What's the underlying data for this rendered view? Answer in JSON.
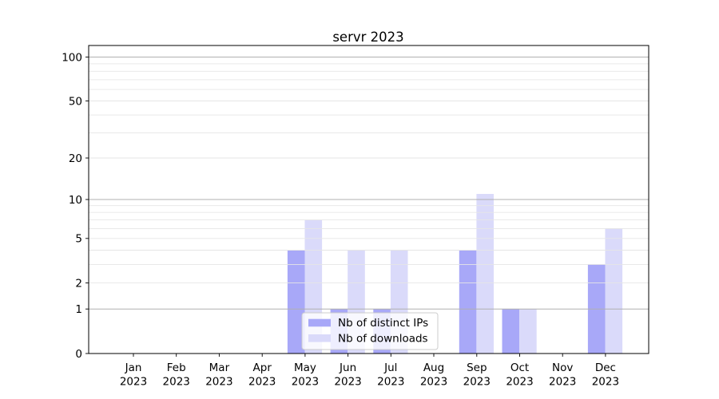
{
  "title": "servr 2023",
  "chart_data": {
    "type": "bar",
    "title": "servr 2023",
    "xlabel": "",
    "ylabel": "",
    "categories": [
      "Jan 2023",
      "Feb 2023",
      "Mar 2023",
      "Apr 2023",
      "May 2023",
      "Jun 2023",
      "Jul 2023",
      "Aug 2023",
      "Sep 2023",
      "Oct 2023",
      "Nov 2023",
      "Dec 2023"
    ],
    "series": [
      {
        "name": "Nb of distinct IPs",
        "color": "#a8a8f8",
        "values": [
          0,
          0,
          0,
          0,
          4,
          1,
          1,
          0,
          4,
          1,
          0,
          3
        ]
      },
      {
        "name": "Nb of downloads",
        "color": "#dadafa",
        "values": [
          0,
          0,
          0,
          0,
          7,
          4,
          4,
          0,
          11,
          1,
          0,
          6
        ]
      }
    ],
    "y_scale": "log1p",
    "ylim": [
      0,
      120
    ],
    "yticks": [
      0,
      1,
      2,
      5,
      10,
      20,
      50,
      100
    ],
    "grid": "horizontal; major gridlines at 1,10,100 darker, log minor gridlines lighter",
    "legend_position": "lower center inside plot"
  },
  "legend": {
    "entries": [
      "Nb of distinct IPs",
      "Nb of downloads"
    ]
  },
  "colors": {
    "series_ips": "#a8a8f8",
    "series_downloads": "#dadafa",
    "major_grid": "#b0b0b0",
    "minor_grid": "#e6e6e6",
    "spine": "#000000",
    "legend_border": "#cccccc",
    "legend_bg_alpha": "rgba(255,255,255,0.8)"
  }
}
